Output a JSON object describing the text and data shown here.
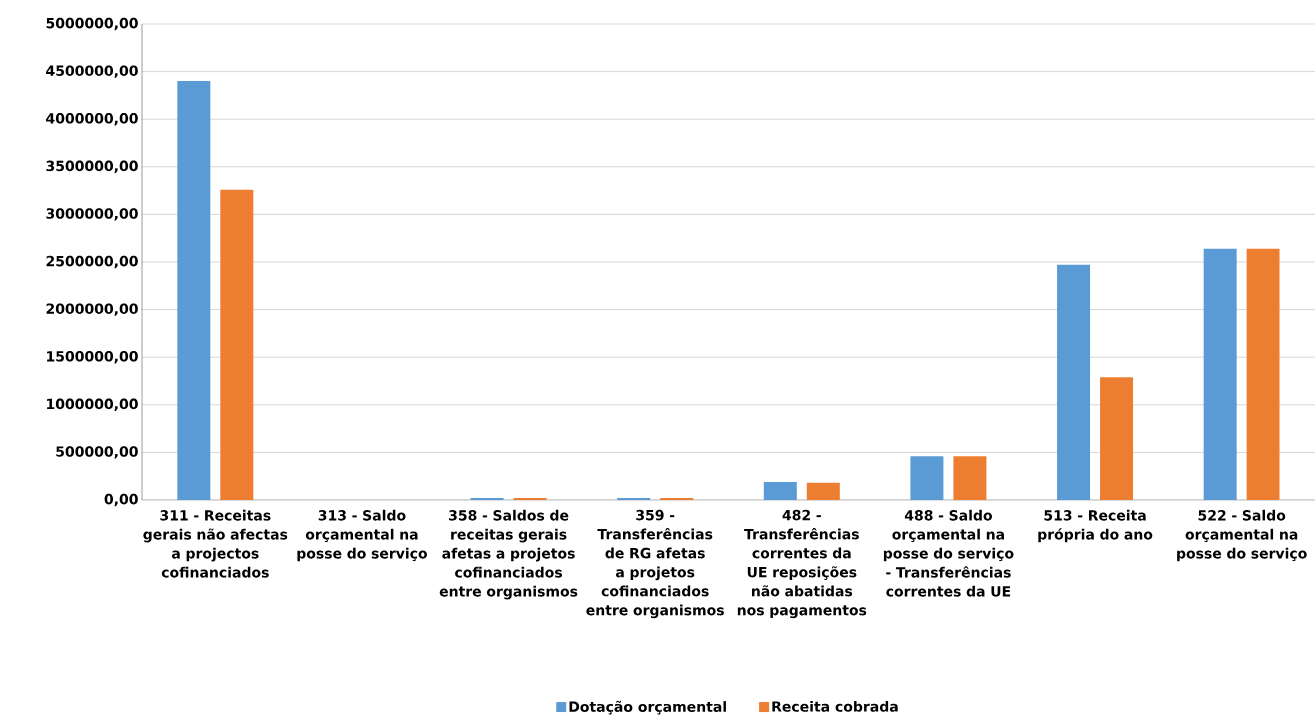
{
  "chart_data": {
    "type": "bar",
    "categories": [
      "311 - Receitas gerais não afectas a projectos cofinanciados",
      "313 - Saldo orçamental na posse do serviço",
      "358 - Saldos de receitas gerais afetas a projetos cofinanciados entre organismos",
      "359 - Transferências de RG afetas a projetos cofinanciados entre organismos",
      "482 - Transferências correntes da UE reposições não abatidas nos pagamentos",
      "488 - Saldo orçamental na posse do serviço - Transferências correntes da UE",
      "513 - Receita própria do ano",
      "522 - Saldo orçamental na posse do serviço"
    ],
    "series": [
      {
        "name": "Dotação orçamental",
        "color": "#5b9bd5",
        "values": [
          4400000,
          0,
          20000,
          20000,
          190000,
          460000,
          2470000,
          2640000
        ]
      },
      {
        "name": "Receita cobrada",
        "color": "#ed7d31",
        "values": [
          3260000,
          0,
          20000,
          20000,
          180000,
          460000,
          1290000,
          2640000
        ]
      }
    ],
    "ylim": [
      0,
      5000000
    ],
    "yticks": [
      {
        "value": 0,
        "label": "0,00"
      },
      {
        "value": 500000,
        "label": "500000,00"
      },
      {
        "value": 1000000,
        "label": "1000000,00"
      },
      {
        "value": 1500000,
        "label": "1500000,00"
      },
      {
        "value": 2000000,
        "label": "2000000,00"
      },
      {
        "value": 2500000,
        "label": "2500000,00"
      },
      {
        "value": 3000000,
        "label": "3000000,00"
      },
      {
        "value": 3500000,
        "label": "3500000,00"
      },
      {
        "value": 4000000,
        "label": "4000000,00"
      },
      {
        "value": 4500000,
        "label": "4500000,00"
      },
      {
        "value": 5000000,
        "label": "5000000,00"
      }
    ],
    "grid": "y",
    "legend": "bottom"
  }
}
